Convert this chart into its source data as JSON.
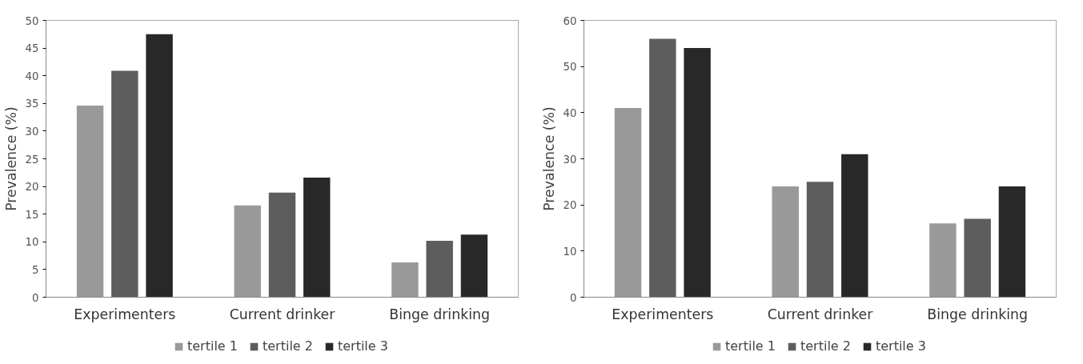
{
  "chart_data": [
    {
      "type": "bar",
      "ylabel": "Prevalence (%)",
      "categories": [
        "Experimenters",
        "Current drinker",
        "Binge drinking"
      ],
      "ylim": [
        0,
        50
      ],
      "yticks": [
        0,
        5,
        10,
        15,
        20,
        25,
        30,
        35,
        40,
        45,
        50
      ],
      "grid": false,
      "legend": "bottom",
      "series": [
        {
          "name": "tertile 1",
          "color": "#999999",
          "values": [
            34.6,
            16.6,
            6.3
          ]
        },
        {
          "name": "tertile 2",
          "color": "#5d5d5d",
          "values": [
            40.9,
            18.9,
            10.2
          ]
        },
        {
          "name": "tertile 3",
          "color": "#282828",
          "values": [
            47.5,
            21.6,
            11.3
          ]
        }
      ]
    },
    {
      "type": "bar",
      "ylabel": "Prevalence (%)",
      "categories": [
        "Experimenters",
        "Current drinker",
        "Binge drinking"
      ],
      "ylim": [
        0,
        60
      ],
      "yticks": [
        0,
        10,
        20,
        30,
        40,
        50,
        60
      ],
      "grid": false,
      "legend": "bottom",
      "series": [
        {
          "name": "tertile 1",
          "color": "#999999",
          "values": [
            41,
            24,
            16
          ]
        },
        {
          "name": "tertile 2",
          "color": "#5d5d5d",
          "values": [
            56,
            25,
            17
          ]
        },
        {
          "name": "tertile 3",
          "color": "#282828",
          "values": [
            54,
            31,
            24
          ]
        }
      ]
    }
  ]
}
